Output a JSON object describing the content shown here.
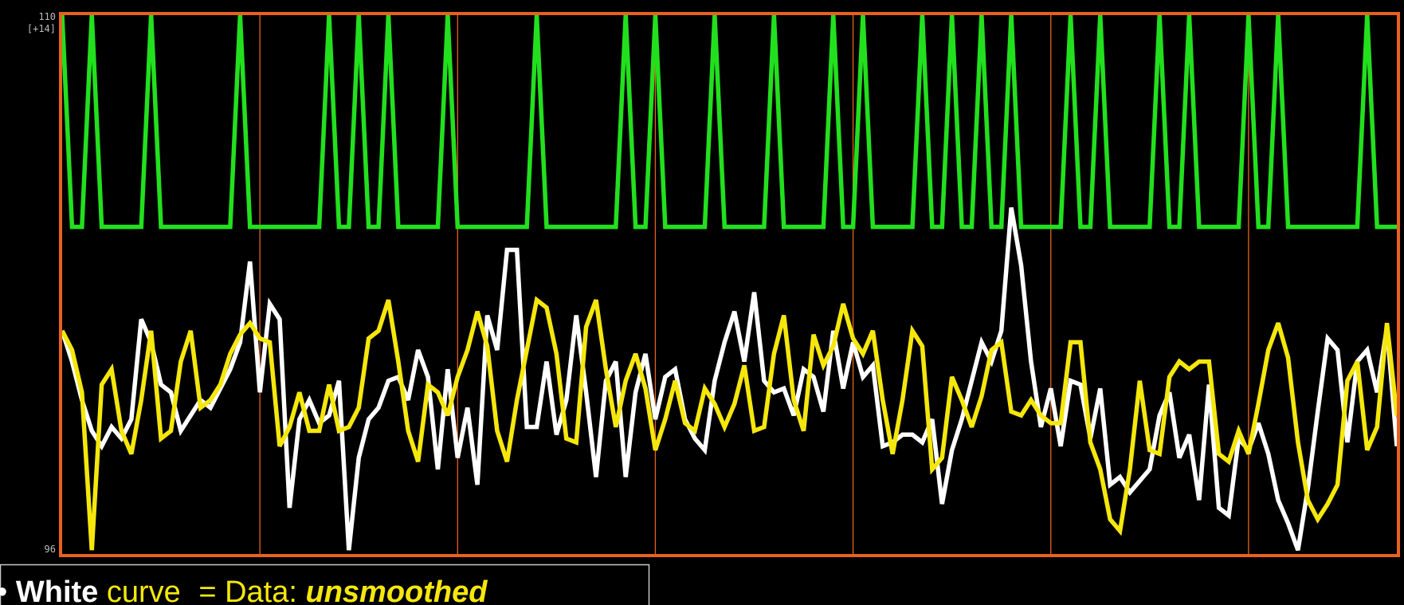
{
  "chart_data": {
    "type": "line",
    "annotation": "[+14]",
    "caption": {
      "bullet": "•",
      "name": "White",
      "word": "curve",
      "equals": "= Data:",
      "emphasis": "unsmoothed"
    },
    "frame_color": "#e8621e",
    "xlim": [
      0,
      135
    ],
    "xticks": [
      20,
      40,
      60,
      80,
      100,
      120
    ],
    "ylim": [
      96,
      110
    ],
    "yticks": [
      96,
      110
    ],
    "grid": true,
    "series": [
      {
        "color": "#22e01e",
        "values": [
          110,
          104.5,
          104.5,
          110,
          104.5,
          104.5,
          104.5,
          104.5,
          104.5,
          110,
          104.5,
          104.5,
          104.5,
          104.5,
          104.5,
          104.5,
          104.5,
          104.5,
          110,
          104.5,
          104.5,
          104.5,
          104.5,
          104.5,
          104.5,
          104.5,
          104.5,
          110,
          104.5,
          104.5,
          110,
          104.5,
          104.5,
          110,
          104.5,
          104.5,
          104.5,
          104.5,
          104.5,
          110,
          104.5,
          104.5,
          104.5,
          104.5,
          104.5,
          104.5,
          104.5,
          104.5,
          110,
          104.5,
          104.5,
          104.5,
          104.5,
          104.5,
          104.5,
          104.5,
          104.5,
          110,
          104.5,
          104.5,
          110,
          104.5,
          104.5,
          104.5,
          104.5,
          104.5,
          110,
          104.5,
          104.5,
          104.5,
          104.5,
          104.5,
          110,
          104.5,
          104.5,
          104.5,
          104.5,
          104.5,
          110,
          104.5,
          104.5,
          110,
          104.5,
          104.5,
          104.5,
          104.5,
          104.5,
          110,
          104.5,
          104.5,
          110,
          104.5,
          104.5,
          110,
          104.5,
          104.5,
          110,
          104.5,
          104.5,
          104.5,
          104.5,
          104.5,
          110,
          104.5,
          104.5,
          110,
          104.5,
          104.5,
          104.5,
          104.5,
          104.5,
          110,
          104.5,
          104.5,
          110,
          104.5,
          104.5,
          104.5,
          104.5,
          104.5,
          110,
          104.5,
          104.5,
          110,
          104.5,
          104.5,
          104.5,
          104.5,
          104.5,
          104.5,
          104.5,
          104.5,
          110,
          104.5,
          104.5,
          104.5
        ]
      },
      {
        "color": "#ffffff",
        "values": [
          101.8,
          101.0,
          100.0,
          99.2,
          98.8,
          99.3,
          99.0,
          99.5,
          102.1,
          101.5,
          100.4,
          100.2,
          99.2,
          99.6,
          100.0,
          99.8,
          100.3,
          100.8,
          101.5,
          103.6,
          100.2,
          102.5,
          102.1,
          97.2,
          99.5,
          100.0,
          99.4,
          99.6,
          100.5,
          96.1,
          98.5,
          99.5,
          99.8,
          100.5,
          100.6,
          100.0,
          101.3,
          100.6,
          98.2,
          100.8,
          98.5,
          99.8,
          97.8,
          102.2,
          101.3,
          103.9,
          103.9,
          99.3,
          99.3,
          101.0,
          99.1,
          100.0,
          102.2,
          100.2,
          98.0,
          100.5,
          101.0,
          98.0,
          100.2,
          101.2,
          99.5,
          100.6,
          100.8,
          99.5,
          99.0,
          98.7,
          100.5,
          101.5,
          102.3,
          101.0,
          102.8,
          100.5,
          100.2,
          100.3,
          99.6,
          100.8,
          100.6,
          99.7,
          101.8,
          100.3,
          101.5,
          100.6,
          100.9,
          98.8,
          98.9,
          99.1,
          99.1,
          98.9,
          99.5,
          97.3,
          98.7,
          99.5,
          100.5,
          101.5,
          101.0,
          101.8,
          105.0,
          103.5,
          101.0,
          99.3,
          100.3,
          98.8,
          100.5,
          100.4,
          99.0,
          100.3,
          97.8,
          98.0,
          97.6,
          97.9,
          98.2,
          99.6,
          100.2,
          98.5,
          99.1,
          97.4,
          100.4,
          97.2,
          97.0,
          99.0,
          98.7,
          99.4,
          98.6,
          97.4,
          96.8,
          96.1,
          97.7,
          99.7,
          101.6,
          101.3,
          98.9,
          101.0,
          101.3,
          100.2,
          101.9,
          98.8
        ]
      },
      {
        "color": "#f5e70c",
        "values": [
          101.8,
          101.3,
          100.2,
          96.1,
          100.4,
          100.8,
          99.2,
          98.6,
          100.0,
          101.8,
          99.0,
          99.2,
          101.0,
          101.8,
          99.8,
          100.0,
          100.4,
          101.2,
          101.7,
          102.0,
          101.6,
          101.5,
          98.8,
          99.3,
          100.2,
          99.2,
          99.2,
          100.4,
          99.2,
          99.3,
          99.8,
          101.6,
          101.8,
          102.6,
          101.0,
          99.2,
          98.4,
          100.4,
          100.2,
          99.6,
          100.6,
          101.3,
          102.3,
          101.4,
          99.2,
          98.4,
          100.0,
          101.3,
          102.6,
          102.4,
          101.2,
          99.0,
          98.9,
          101.9,
          102.6,
          100.8,
          99.3,
          100.5,
          101.2,
          100.3,
          98.7,
          99.5,
          100.5,
          99.4,
          99.2,
          100.3,
          99.9,
          99.3,
          99.9,
          100.9,
          99.2,
          99.3,
          101.2,
          102.2,
          100.0,
          99.2,
          101.7,
          100.9,
          101.4,
          102.5,
          101.6,
          101.2,
          101.8,
          100.0,
          98.6,
          100.0,
          101.8,
          101.4,
          98.2,
          98.5,
          100.6,
          100.0,
          99.3,
          100.1,
          101.3,
          101.5,
          99.7,
          99.6,
          100.0,
          99.6,
          99.4,
          99.4,
          101.5,
          101.5,
          98.9,
          98.2,
          96.9,
          96.6,
          98.2,
          100.5,
          98.7,
          98.6,
          100.6,
          101.0,
          100.8,
          101.0,
          101.0,
          98.6,
          98.4,
          99.2,
          98.6,
          99.9,
          101.3,
          102.0,
          101.1,
          98.9,
          97.4,
          96.9,
          97.3,
          97.8,
          100.5,
          101.0,
          98.7,
          99.3,
          102.0,
          99.6
        ]
      }
    ]
  }
}
